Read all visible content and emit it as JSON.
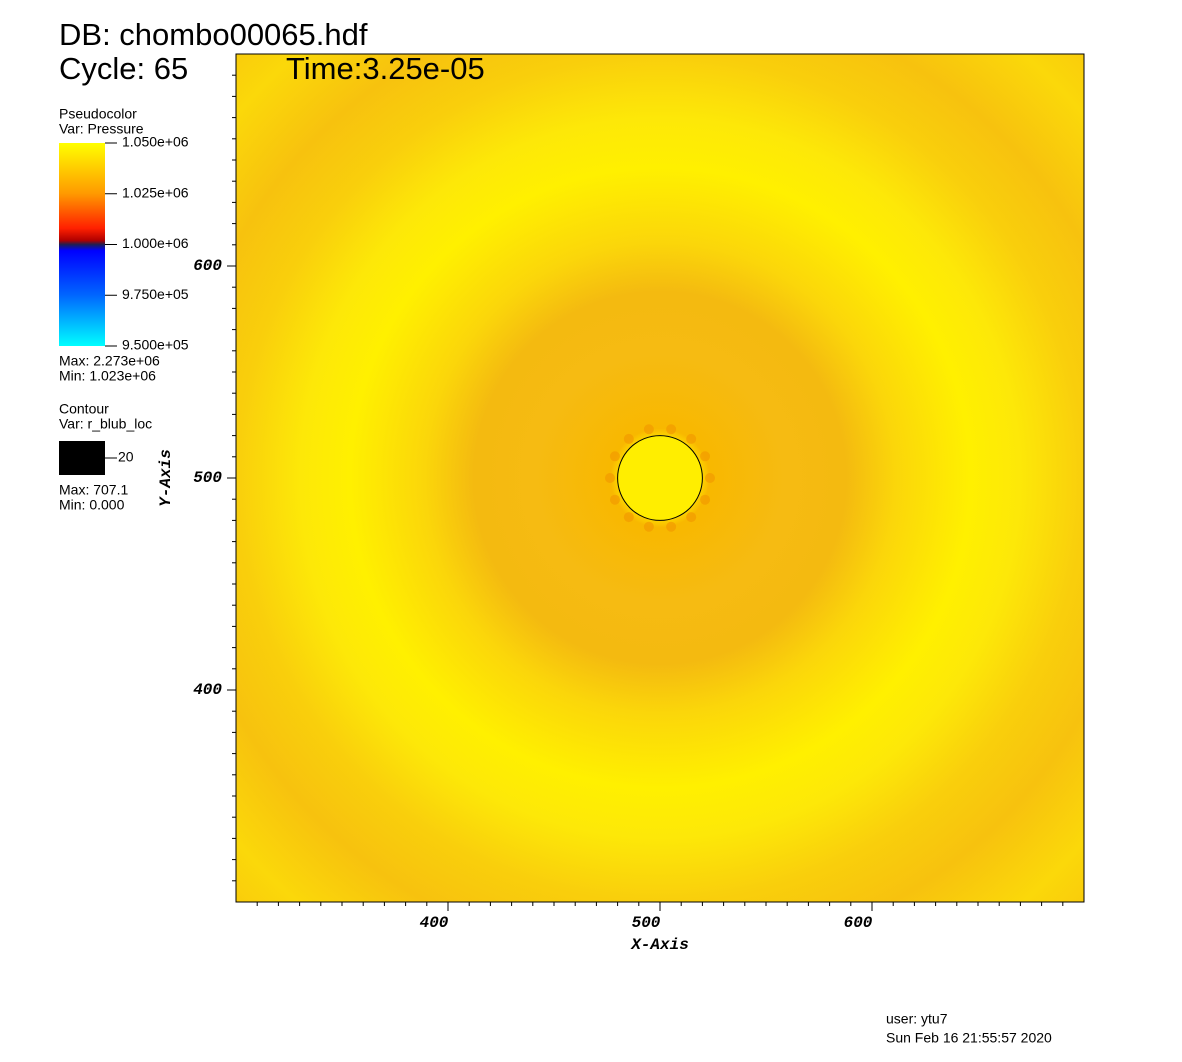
{
  "header": {
    "db": "DB: chombo00065.hdf",
    "cycle": "Cycle: 65",
    "time": "Time:3.25e-05"
  },
  "pseudocolor": {
    "title": "Pseudocolor",
    "var": "Var: Pressure",
    "ticks": [
      {
        "value": 1050000,
        "label": "1.050e+06"
      },
      {
        "value": 1025000,
        "label": "1.025e+06"
      },
      {
        "value": 1000000,
        "label": "1.000e+06"
      },
      {
        "value": 975000,
        "label": "9.750e+05"
      },
      {
        "value": 950000,
        "label": "9.500e+05"
      }
    ],
    "max": "Max: 2.273e+06",
    "min": "Min: 1.023e+06"
  },
  "contour": {
    "title": "Contour",
    "var": "Var: r_blub_loc",
    "level": 20,
    "max": "Max: 707.1",
    "min": "Min: 0.000"
  },
  "axes": {
    "xlabel": "X-Axis",
    "ylabel": "Y-Axis",
    "xlim": [
      300,
      700
    ],
    "ylim": [
      300,
      700
    ],
    "xticks": [
      400,
      500,
      600
    ],
    "yticks": [
      400,
      500,
      600
    ]
  },
  "footer": {
    "user": "user: ytu7",
    "date": "Sun Feb 16 21:55:57 2020"
  }
}
